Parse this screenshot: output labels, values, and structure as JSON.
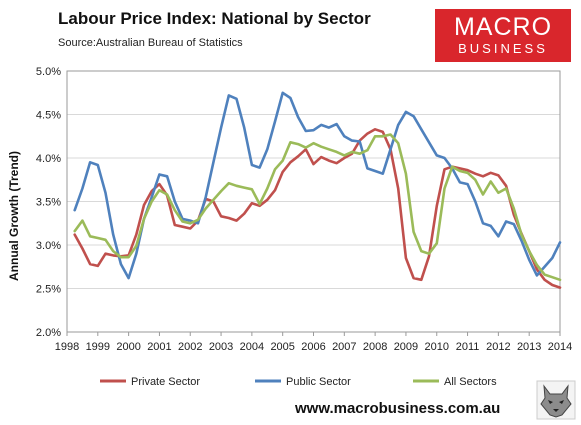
{
  "title": "Labour Price Index: National by Sector",
  "source": "Source:Australian Bureau of Statistics",
  "logo": {
    "line1": "MACRO",
    "line2": "BUSINESS",
    "color": "#d9262c"
  },
  "website": "www.macrobusiness.com.au",
  "icons": {
    "corner_image": "wolf-head-icon"
  },
  "chart_data": {
    "type": "line",
    "title": "Labour Price Index: National by Sector",
    "ylabel": "Annual Growth (Trend)",
    "xlabel": "",
    "xlim": [
      1998,
      2014
    ],
    "ylim": [
      2.0,
      5.0
    ],
    "x_ticks": [
      1998,
      1999,
      2000,
      2001,
      2002,
      2003,
      2004,
      2005,
      2006,
      2007,
      2008,
      2009,
      2010,
      2011,
      2012,
      2013,
      2014
    ],
    "x_tick_labels": [
      "1998",
      "1999",
      "2000",
      "2001",
      "2002",
      "2003",
      "2004",
      "2005",
      "2006",
      "2007",
      "2008",
      "2009",
      "2010",
      "2011",
      "2012",
      "2013",
      "2014"
    ],
    "y_ticks": [
      2.0,
      2.5,
      3.0,
      3.5,
      4.0,
      4.5,
      5.0
    ],
    "y_tick_labels": [
      "2.0%",
      "2.5%",
      "3.0%",
      "3.5%",
      "4.0%",
      "4.5%",
      "5.0%"
    ],
    "grid": {
      "horizontal": true,
      "vertical": false
    },
    "legend_position": "bottom",
    "series": [
      {
        "name": "Private Sector",
        "color": "#c0504d",
        "x": [
          1998.25,
          1998.5,
          1998.75,
          1999.0,
          1999.25,
          1999.5,
          1999.75,
          2000.0,
          2000.25,
          2000.5,
          2000.75,
          2001.0,
          2001.25,
          2001.5,
          2001.75,
          2002.0,
          2002.25,
          2002.5,
          2002.75,
          2003.0,
          2003.25,
          2003.5,
          2003.75,
          2004.0,
          2004.25,
          2004.5,
          2004.75,
          2005.0,
          2005.25,
          2005.5,
          2005.75,
          2006.0,
          2006.25,
          2006.5,
          2006.75,
          2007.0,
          2007.25,
          2007.5,
          2007.75,
          2008.0,
          2008.25,
          2008.5,
          2008.75,
          2009.0,
          2009.25,
          2009.5,
          2009.75,
          2010.0,
          2010.25,
          2010.5,
          2010.75,
          2011.0,
          2011.25,
          2011.5,
          2011.75,
          2012.0,
          2012.25,
          2012.5,
          2012.75,
          2013.0,
          2013.25,
          2013.5,
          2013.75,
          2014.0
        ],
        "values": [
          3.12,
          2.96,
          2.78,
          2.76,
          2.9,
          2.88,
          2.87,
          2.88,
          3.12,
          3.46,
          3.62,
          3.7,
          3.57,
          3.23,
          3.21,
          3.19,
          3.28,
          3.53,
          3.5,
          3.33,
          3.31,
          3.28,
          3.36,
          3.48,
          3.45,
          3.52,
          3.63,
          3.84,
          3.95,
          4.02,
          4.1,
          3.93,
          4.01,
          3.97,
          3.94,
          4.0,
          4.05,
          4.2,
          4.28,
          4.33,
          4.3,
          4.1,
          3.65,
          2.85,
          2.62,
          2.6,
          2.87,
          3.45,
          3.87,
          3.9,
          3.88,
          3.86,
          3.82,
          3.79,
          3.83,
          3.8,
          3.68,
          3.35,
          3.13,
          2.93,
          2.72,
          2.6,
          2.54,
          2.51
        ]
      },
      {
        "name": "Public Sector",
        "color": "#4f81bd",
        "x": [
          1998.25,
          1998.5,
          1998.75,
          1999.0,
          1999.25,
          1999.5,
          1999.75,
          2000.0,
          2000.25,
          2000.5,
          2000.75,
          2001.0,
          2001.25,
          2001.5,
          2001.75,
          2002.0,
          2002.25,
          2002.5,
          2002.75,
          2003.0,
          2003.25,
          2003.5,
          2003.75,
          2004.0,
          2004.25,
          2004.5,
          2004.75,
          2005.0,
          2005.25,
          2005.5,
          2005.75,
          2006.0,
          2006.25,
          2006.5,
          2006.75,
          2007.0,
          2007.25,
          2007.5,
          2007.75,
          2008.0,
          2008.25,
          2008.5,
          2008.75,
          2009.0,
          2009.25,
          2009.5,
          2009.75,
          2010.0,
          2010.25,
          2010.5,
          2010.75,
          2011.0,
          2011.25,
          2011.5,
          2011.75,
          2012.0,
          2012.25,
          2012.5,
          2012.75,
          2013.0,
          2013.25,
          2013.5,
          2013.75,
          2014.0
        ],
        "values": [
          3.4,
          3.65,
          3.95,
          3.92,
          3.6,
          3.12,
          2.78,
          2.62,
          2.9,
          3.3,
          3.55,
          3.81,
          3.79,
          3.5,
          3.3,
          3.28,
          3.25,
          3.55,
          3.95,
          4.35,
          4.72,
          4.68,
          4.35,
          3.92,
          3.89,
          4.1,
          4.42,
          4.75,
          4.69,
          4.47,
          4.31,
          4.32,
          4.38,
          4.35,
          4.39,
          4.25,
          4.2,
          4.19,
          3.88,
          3.85,
          3.82,
          4.1,
          4.38,
          4.53,
          4.48,
          4.33,
          4.18,
          4.03,
          4.0,
          3.88,
          3.72,
          3.7,
          3.5,
          3.25,
          3.22,
          3.1,
          3.27,
          3.24,
          3.05,
          2.83,
          2.65,
          2.75,
          2.85,
          3.03
        ]
      },
      {
        "name": "All Sectors",
        "color": "#9bbb59",
        "x": [
          1998.25,
          1998.5,
          1998.75,
          1999.0,
          1999.25,
          1999.5,
          1999.75,
          2000.0,
          2000.25,
          2000.5,
          2000.75,
          2001.0,
          2001.25,
          2001.5,
          2001.75,
          2002.0,
          2002.25,
          2002.5,
          2002.75,
          2003.0,
          2003.25,
          2003.5,
          2003.75,
          2004.0,
          2004.25,
          2004.5,
          2004.75,
          2005.0,
          2005.25,
          2005.5,
          2005.75,
          2006.0,
          2006.25,
          2006.5,
          2006.75,
          2007.0,
          2007.25,
          2007.5,
          2007.75,
          2008.0,
          2008.25,
          2008.5,
          2008.75,
          2009.0,
          2009.25,
          2009.5,
          2009.75,
          2010.0,
          2010.25,
          2010.5,
          2010.75,
          2011.0,
          2011.25,
          2011.5,
          2011.75,
          2012.0,
          2012.25,
          2012.5,
          2012.75,
          2013.0,
          2013.25,
          2013.5,
          2013.75,
          2014.0
        ],
        "values": [
          3.16,
          3.28,
          3.1,
          3.08,
          3.06,
          2.93,
          2.86,
          2.86,
          2.99,
          3.3,
          3.5,
          3.63,
          3.58,
          3.4,
          3.27,
          3.25,
          3.29,
          3.42,
          3.52,
          3.62,
          3.71,
          3.68,
          3.66,
          3.64,
          3.47,
          3.65,
          3.87,
          3.97,
          4.18,
          4.16,
          4.12,
          4.17,
          4.13,
          4.1,
          4.07,
          4.03,
          4.07,
          4.05,
          4.09,
          4.25,
          4.25,
          4.27,
          4.17,
          3.82,
          3.15,
          2.93,
          2.9,
          3.02,
          3.65,
          3.9,
          3.85,
          3.83,
          3.75,
          3.58,
          3.73,
          3.6,
          3.65,
          3.42,
          3.12,
          2.93,
          2.77,
          2.66,
          2.63,
          2.6
        ]
      }
    ]
  }
}
